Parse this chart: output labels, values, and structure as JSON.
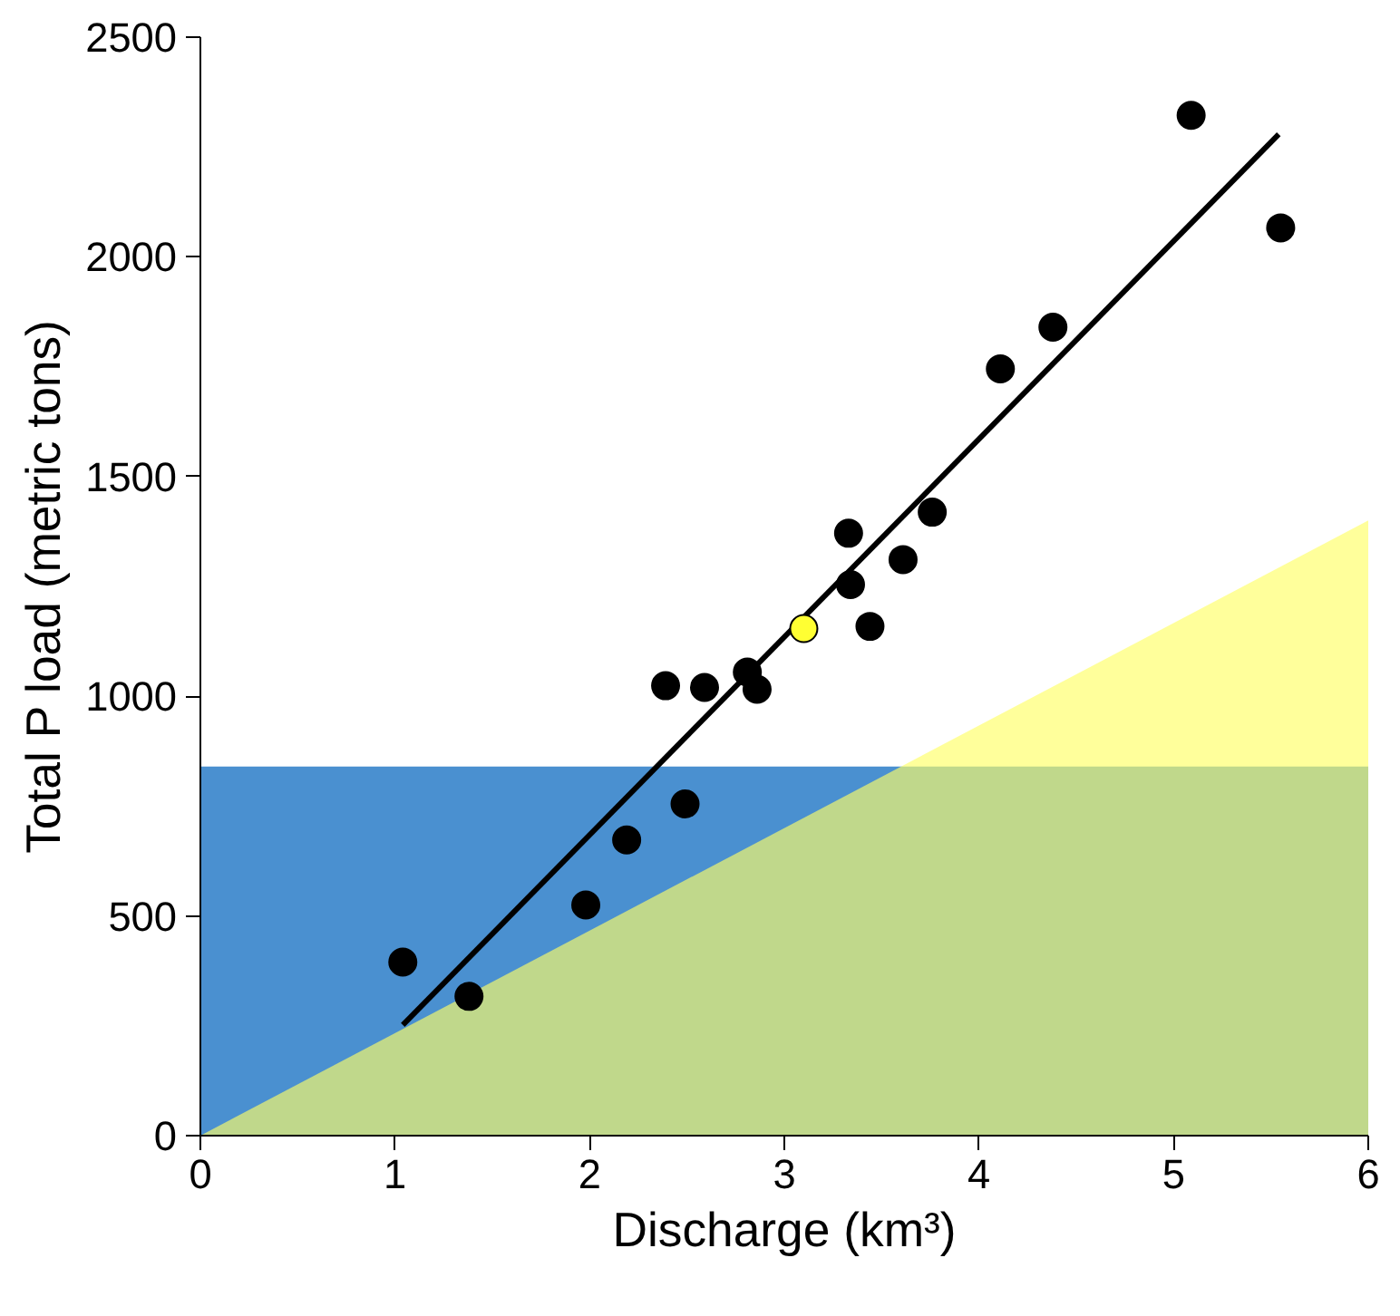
{
  "chart_data": {
    "type": "scatter",
    "xlabel": "Discharge (km³)",
    "ylabel": "Total P load (metric tons)",
    "xlim": [
      0,
      6
    ],
    "ylim": [
      0,
      2500
    ],
    "xticks": [
      0,
      1,
      2,
      3,
      4,
      5,
      6
    ],
    "yticks": [
      0,
      500,
      1000,
      1500,
      2000,
      2500
    ],
    "grid": false,
    "bands": [
      {
        "axis": "y",
        "from": 0,
        "to": 840,
        "color": "#4a90d0"
      }
    ],
    "series": [
      {
        "type": "area",
        "color": "#ffff66",
        "x": [
          0,
          6
        ],
        "values": [
          0,
          1400
        ]
      },
      {
        "marker": "circle",
        "color": "#000000",
        "x": [
          1.04,
          1.38,
          1.98,
          2.19,
          2.39,
          2.49,
          2.59,
          2.81,
          2.86,
          3.1,
          3.33,
          3.34,
          3.44,
          3.61,
          3.76,
          4.11,
          4.38,
          5.09,
          5.55
        ],
        "values": [
          395,
          317,
          525,
          673,
          1024,
          755,
          1020,
          1055,
          1016,
          1154,
          1371,
          1254,
          1159,
          1311,
          1419,
          1745,
          1840,
          2322,
          2066
        ],
        "colors": [
          "#000000",
          "#000000",
          "#000000",
          "#000000",
          "#000000",
          "#000000",
          "#000000",
          "#000000",
          "#000000",
          "#ffff33",
          "#000000",
          "#000000",
          "#000000",
          "#000000",
          "#000000",
          "#000000",
          "#000000",
          "#000000",
          "#000000"
        ]
      },
      {
        "type": "line",
        "color": "#000000",
        "x": [
          1.04,
          5.54
        ],
        "values": [
          252,
          2279
        ],
        "line_style": "solid"
      }
    ]
  }
}
